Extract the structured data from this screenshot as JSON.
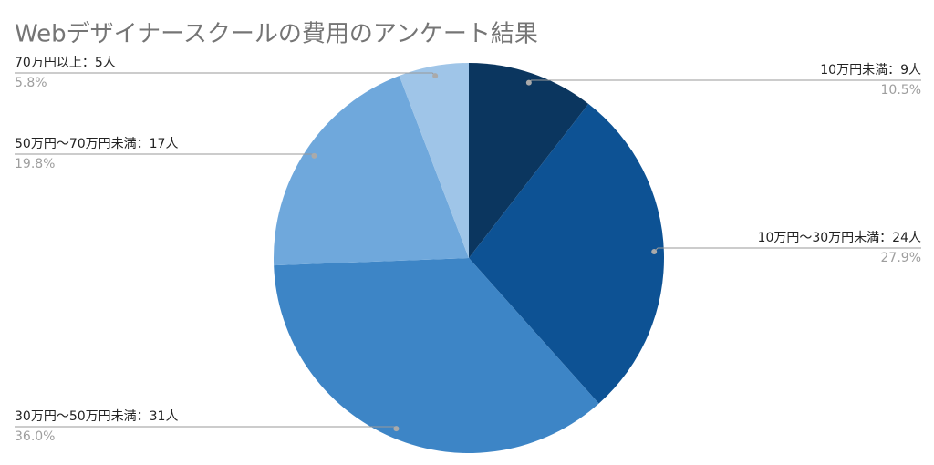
{
  "chart_data": {
    "type": "pie",
    "title": "Webデザイナースクールの費用のアンケート結果",
    "categories": [
      "10万円未満：9人",
      "10万円〜30万円未満：24人",
      "30万円〜50万円未満：31人",
      "50万円〜70万円未満：17人",
      "70万円以上：5人"
    ],
    "values": [
      10.5,
      27.9,
      36.0,
      19.8,
      5.8
    ],
    "value_labels": [
      "10.5%",
      "27.9%",
      "36.0%",
      "19.8%",
      "5.8%"
    ],
    "colors": [
      "#0b365f",
      "#0d5294",
      "#3d85c6",
      "#6fa8dc",
      "#9fc5e8"
    ]
  }
}
